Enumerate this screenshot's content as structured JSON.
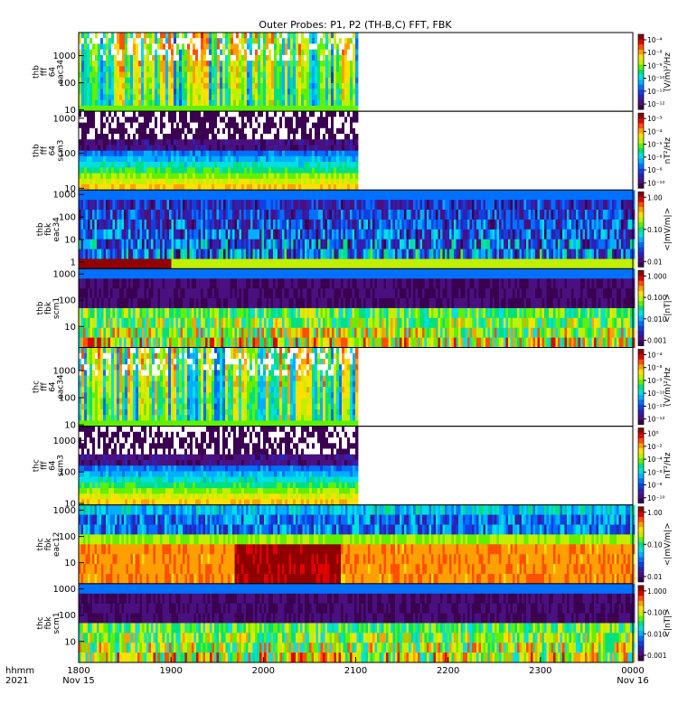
{
  "chart_data": {
    "type": "heatmap",
    "title": "Outer Probes: P1, P2 (TH-B,C) FFT, FBK",
    "x_axis": {
      "label_line1": "hhmm",
      "label_line2": "2021",
      "ticks": [
        {
          "value": 1800,
          "label": "1800",
          "sub": "Nov 15"
        },
        {
          "value": 1900,
          "label": "1900",
          "sub": ""
        },
        {
          "value": 2000,
          "label": "2000",
          "sub": ""
        },
        {
          "value": 2100,
          "label": "2100",
          "sub": ""
        },
        {
          "value": 2200,
          "label": "2200",
          "sub": ""
        },
        {
          "value": 2300,
          "label": "2300",
          "sub": ""
        },
        {
          "value": 2400,
          "label": "0000",
          "sub": "Nov 16"
        }
      ],
      "range_minutes": [
        0,
        360
      ]
    },
    "colorbar_palette": [
      "#ffffff",
      "#000000",
      "#3b0050",
      "#4a1080",
      "#3020b0",
      "#1040e0",
      "#0070ff",
      "#00b0ff",
      "#00e0e0",
      "#00e080",
      "#60f000",
      "#c0f000",
      "#ffe000",
      "#ffa000",
      "#ff5000",
      "#e00000",
      "#900000"
    ],
    "panels": [
      {
        "id": "thb-fff-eac34",
        "ylabel": [
          "thb",
          "fff",
          "64",
          "eac34"
        ],
        "yticks": [
          "1000",
          "100",
          "10"
        ],
        "log_range": [
          0.95,
          3.85
        ],
        "data_end_minute": 180,
        "cbar_label": "(V/m)²/Hz",
        "cbar_ticks": [
          "10⁻⁴",
          "10⁻⁸",
          "10⁻⁹",
          "10⁻¹⁰",
          "10⁻¹¹",
          "10⁻¹²"
        ],
        "pattern": "fff_e"
      },
      {
        "id": "thb-fff-scm3",
        "ylabel": [
          "thb",
          "fff",
          "64",
          "scm3"
        ],
        "yticks": [
          "1000",
          "100",
          "10"
        ],
        "log_range": [
          0.95,
          3.2
        ],
        "data_end_minute": 180,
        "cbar_label": "nT²/Hz",
        "cbar_ticks": [
          "10⁻³",
          "10⁻⁴",
          "10⁻⁵",
          "10⁻⁶",
          "10⁻⁸",
          "10⁻¹⁰"
        ],
        "pattern": "fff_b"
      },
      {
        "id": "thb-fbk-eac34",
        "ylabel": [
          "thb",
          "fbk",
          "eac34"
        ],
        "yticks": [
          "1000",
          "100",
          "10",
          "1"
        ],
        "log_range": [
          -0.3,
          3.2
        ],
        "data_end_minute": 360,
        "cbar_label": "<|mV/m|>",
        "cbar_ticks": [
          "1.00",
          "0.10",
          "0.01"
        ],
        "pattern": "fbk_e_b"
      },
      {
        "id": "thb-fbk-scm1",
        "ylabel": [
          "thb",
          "fbk",
          "scm1"
        ],
        "yticks": [
          "1000",
          "100",
          "10"
        ],
        "log_range": [
          0.2,
          3.2
        ],
        "data_end_minute": 360,
        "cbar_label": "<|nT|>",
        "cbar_ticks": [
          "1.000",
          "0.100",
          "0.010",
          "0.001"
        ],
        "pattern": "fbk_b"
      },
      {
        "id": "thc-fff-eac34",
        "ylabel": [
          "thc",
          "fff",
          "64",
          "eac34"
        ],
        "yticks": [
          "1000",
          "100",
          "10"
        ],
        "log_range": [
          0.95,
          3.85
        ],
        "data_end_minute": 180,
        "cbar_label": "(V/m)²/Hz",
        "cbar_ticks": [
          "10⁻⁴",
          "10⁻⁸",
          "10⁻⁹",
          "10⁻¹⁰",
          "10⁻¹¹",
          "10⁻¹²"
        ],
        "pattern": "fff_e2"
      },
      {
        "id": "thc-fff-scm3",
        "ylabel": [
          "thc",
          "fff",
          "64",
          "scm3"
        ],
        "yticks": [
          "1000",
          "100",
          "10"
        ],
        "log_range": [
          0.95,
          3.45
        ],
        "data_end_minute": 180,
        "cbar_label": "nT²/Hz",
        "cbar_ticks": [
          "10⁰",
          "10⁻²",
          "10⁻⁴",
          "10⁻⁶",
          "10⁻⁸",
          "10⁻¹⁰"
        ],
        "pattern": "fff_b2"
      },
      {
        "id": "thc-fbk-eac12",
        "ylabel": [
          "thc",
          "fbk",
          "eac12"
        ],
        "yticks": [
          "1000",
          "100",
          "10"
        ],
        "log_range": [
          0.2,
          3.2
        ],
        "data_end_minute": 360,
        "cbar_label": "<|mV/m|>",
        "cbar_ticks": [
          "1.00",
          "0.10",
          "0.01"
        ],
        "pattern": "fbk_e_c"
      },
      {
        "id": "thc-fbk-scm1",
        "ylabel": [
          "thc",
          "fbk",
          "scm1"
        ],
        "yticks": [
          "1000",
          "100",
          "10"
        ],
        "log_range": [
          0.2,
          3.2
        ],
        "data_end_minute": 360,
        "cbar_label": "<|nT|>",
        "cbar_ticks": [
          "1.000",
          "0.100",
          "0.010",
          "0.001"
        ],
        "pattern": "fbk_b2"
      }
    ]
  }
}
